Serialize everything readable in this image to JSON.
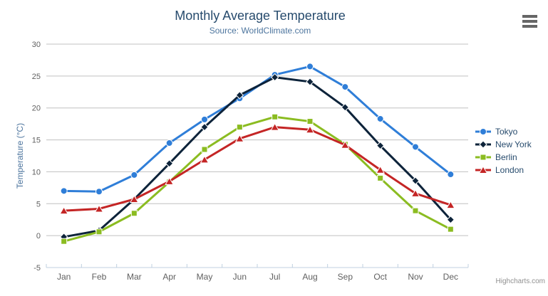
{
  "chart_data": {
    "type": "line",
    "title": "Monthly Average Temperature",
    "subtitle": "Source: WorldClimate.com",
    "xlabel": "",
    "ylabel": "Temperature (°C)",
    "ylim": [
      -5,
      30
    ],
    "yticks": [
      -5,
      0,
      5,
      10,
      15,
      20,
      25,
      30
    ],
    "grid": true,
    "legend_position": "right",
    "categories": [
      "Jan",
      "Feb",
      "Mar",
      "Apr",
      "May",
      "Jun",
      "Jul",
      "Aug",
      "Sep",
      "Oct",
      "Nov",
      "Dec"
    ],
    "series": [
      {
        "name": "Tokyo",
        "marker": "circle",
        "color": "#2f7ed8",
        "values": [
          7.0,
          6.9,
          9.5,
          14.5,
          18.2,
          21.5,
          25.2,
          26.5,
          23.3,
          18.3,
          13.9,
          9.6
        ]
      },
      {
        "name": "New York",
        "marker": "diamond",
        "color": "#0d233a",
        "values": [
          -0.2,
          0.8,
          5.7,
          11.3,
          17.0,
          22.0,
          24.8,
          24.1,
          20.1,
          14.1,
          8.6,
          2.5
        ]
      },
      {
        "name": "Berlin",
        "marker": "square",
        "color": "#8bbc21",
        "values": [
          -0.9,
          0.6,
          3.5,
          8.4,
          13.5,
          17.0,
          18.6,
          17.9,
          14.3,
          9.0,
          3.9,
          1.0
        ]
      },
      {
        "name": "London",
        "marker": "triangle",
        "color": "#c42525",
        "values": [
          3.9,
          4.2,
          5.7,
          8.5,
          11.9,
          15.2,
          17.0,
          16.6,
          14.2,
          10.3,
          6.6,
          4.8
        ]
      }
    ]
  },
  "credits": {
    "label": "Highcharts.com"
  },
  "export_menu": {
    "icon": "hamburger-icon"
  },
  "colors": {
    "background": "#ffffff",
    "title": "#274b6d",
    "subtitle": "#4d759e",
    "axis_title": "#4d759e",
    "axis_label": "#606060",
    "legend_text": "#274b6d",
    "grid": "#c0c0c0",
    "axis_line": "#c0d0e0",
    "credits": "#909090",
    "menu_icon": "#666666"
  }
}
